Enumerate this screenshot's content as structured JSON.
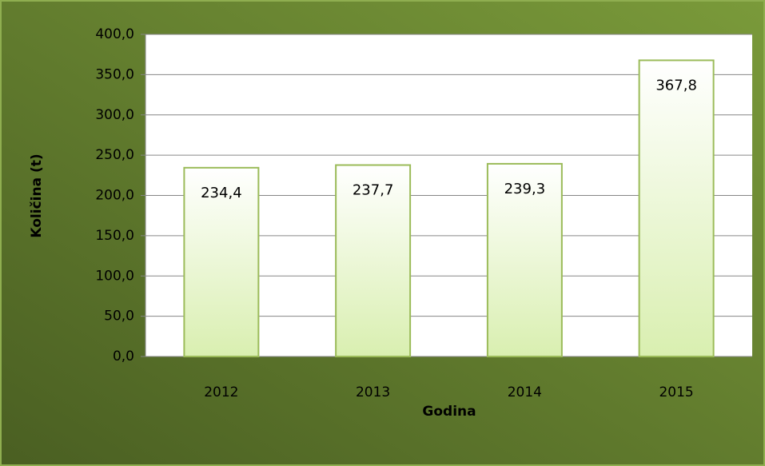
{
  "chart_data": {
    "type": "bar",
    "x_label": "Godina",
    "y_label": "Količina (t)",
    "categories": [
      "2012",
      "2013",
      "2014",
      "2015"
    ],
    "values": [
      234.4,
      237.7,
      239.3,
      367.8
    ],
    "value_labels": [
      "234,4",
      "237,7",
      "239,3",
      "367,8"
    ],
    "color": "#9bbb59",
    "ylim": [
      0,
      400
    ],
    "yticks": [
      {
        "value": 0,
        "label": "0,0"
      },
      {
        "value": 50,
        "label": "50,0"
      },
      {
        "value": 100,
        "label": "100,0"
      },
      {
        "value": 150,
        "label": "150,0"
      },
      {
        "value": 200,
        "label": "200,0"
      },
      {
        "value": 250,
        "label": "250,0"
      },
      {
        "value": 300,
        "label": "300,0"
      },
      {
        "value": 350,
        "label": "350,0"
      },
      {
        "value": 400,
        "label": "400,0"
      }
    ],
    "grid": true
  }
}
